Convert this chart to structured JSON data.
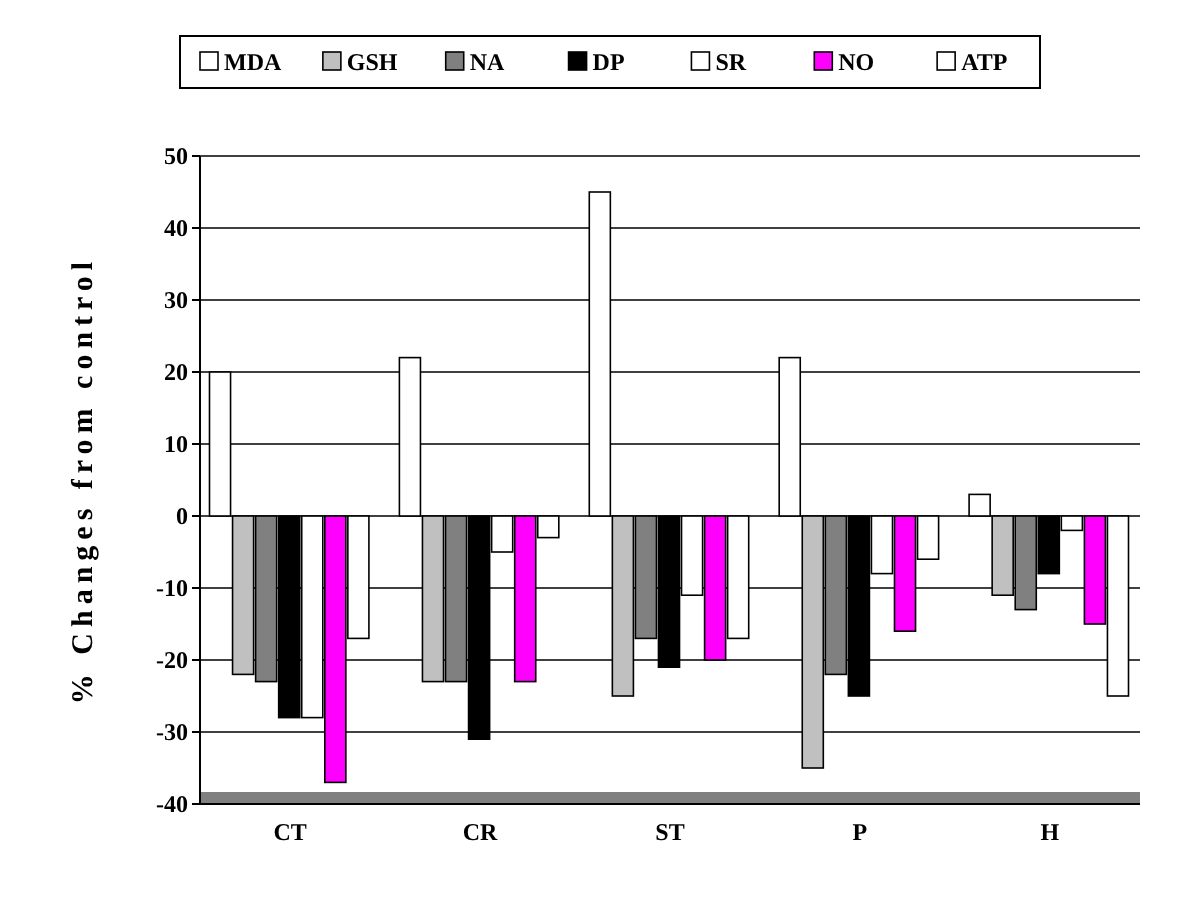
{
  "chart_data": {
    "type": "bar",
    "ylabel": "% Changes from control",
    "categories": [
      "CT",
      "CR",
      "ST",
      "P",
      "H"
    ],
    "series": [
      {
        "name": "MDA",
        "color": "#ffffff",
        "values": [
          20,
          22,
          45,
          22,
          3
        ]
      },
      {
        "name": "GSH",
        "color": "#c0c0c0",
        "values": [
          -22,
          -23,
          -25,
          -35,
          -11
        ]
      },
      {
        "name": "NA",
        "color": "#808080",
        "values": [
          -23,
          -23,
          -17,
          -22,
          -13
        ]
      },
      {
        "name": "DP",
        "color": "#000000",
        "values": [
          -28,
          -31,
          -21,
          -25,
          -8
        ]
      },
      {
        "name": "SR",
        "color": "#ffffff",
        "values": [
          -28,
          -5,
          -11,
          -8,
          -2
        ]
      },
      {
        "name": "NO",
        "color": "#ff00ff",
        "values": [
          -37,
          -23,
          -20,
          -16,
          -15
        ]
      },
      {
        "name": "ATP",
        "color": "#ffffff",
        "values": [
          -17,
          -3,
          -17,
          -6,
          -25
        ]
      }
    ],
    "ylim": [
      -40,
      50
    ],
    "yticks": [
      -40,
      -30,
      -20,
      -10,
      0,
      10,
      20,
      30,
      40,
      50
    ],
    "grid": "y",
    "legend": "top"
  }
}
